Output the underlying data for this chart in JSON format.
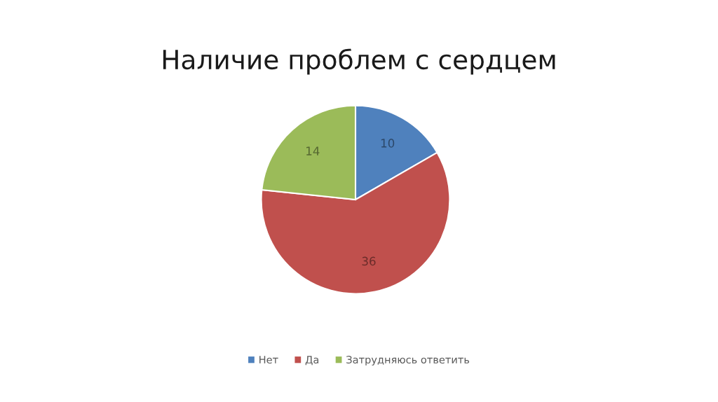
{
  "chart_data": {
    "type": "pie",
    "title": "Наличие проблем с сердцем",
    "categories": [
      "Нет",
      "Да",
      "Затрудняюсь ответить"
    ],
    "values": [
      10,
      36,
      14
    ],
    "colors": [
      "#4f81bd",
      "#c0504d",
      "#9bbb59"
    ],
    "data_labels": true,
    "legend": "bottom"
  }
}
